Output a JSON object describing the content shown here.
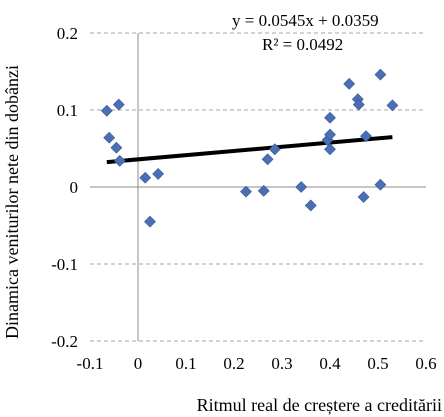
{
  "chart_data": {
    "type": "scatter",
    "title": "",
    "xlabel": "Ritmul real de creștere a creditării",
    "ylabel": "Dinamica veniturilor nete din dobânzi",
    "xlim": [
      -0.1,
      0.6
    ],
    "ylim": [
      -0.2,
      0.2
    ],
    "x_ticks": [
      "-0.1",
      "0",
      "0.1",
      "0.2",
      "0.3",
      "0.4",
      "0.5",
      "0.6"
    ],
    "y_ticks": [
      "0.2",
      "0.1",
      "0",
      "-0.1",
      "-0.2"
    ],
    "grid": "horizontal dashed",
    "legend": "none",
    "point_color": "#4a6fb5",
    "trendline": {
      "equation": "y = 0.0545x + 0.0359",
      "r_squared": "R² = 0.0492",
      "slope": 0.0545,
      "intercept": 0.0359,
      "color": "#000000"
    },
    "points": [
      {
        "x": -0.065,
        "y": 0.099
      },
      {
        "x": -0.06,
        "y": 0.064
      },
      {
        "x": -0.045,
        "y": 0.051
      },
      {
        "x": -0.04,
        "y": 0.107
      },
      {
        "x": -0.038,
        "y": 0.034
      },
      {
        "x": 0.015,
        "y": 0.012
      },
      {
        "x": 0.025,
        "y": -0.045
      },
      {
        "x": 0.042,
        "y": 0.017
      },
      {
        "x": 0.225,
        "y": -0.006
      },
      {
        "x": 0.262,
        "y": -0.005
      },
      {
        "x": 0.27,
        "y": 0.036
      },
      {
        "x": 0.285,
        "y": 0.049
      },
      {
        "x": 0.34,
        "y": 0.0
      },
      {
        "x": 0.36,
        "y": -0.024
      },
      {
        "x": 0.395,
        "y": 0.061
      },
      {
        "x": 0.4,
        "y": 0.049
      },
      {
        "x": 0.4,
        "y": 0.068
      },
      {
        "x": 0.4,
        "y": 0.09
      },
      {
        "x": 0.44,
        "y": 0.134
      },
      {
        "x": 0.458,
        "y": 0.114
      },
      {
        "x": 0.46,
        "y": 0.107
      },
      {
        "x": 0.47,
        "y": -0.013
      },
      {
        "x": 0.475,
        "y": 0.066
      },
      {
        "x": 0.505,
        "y": 0.146
      },
      {
        "x": 0.505,
        "y": 0.003
      },
      {
        "x": 0.53,
        "y": 0.106
      }
    ]
  }
}
